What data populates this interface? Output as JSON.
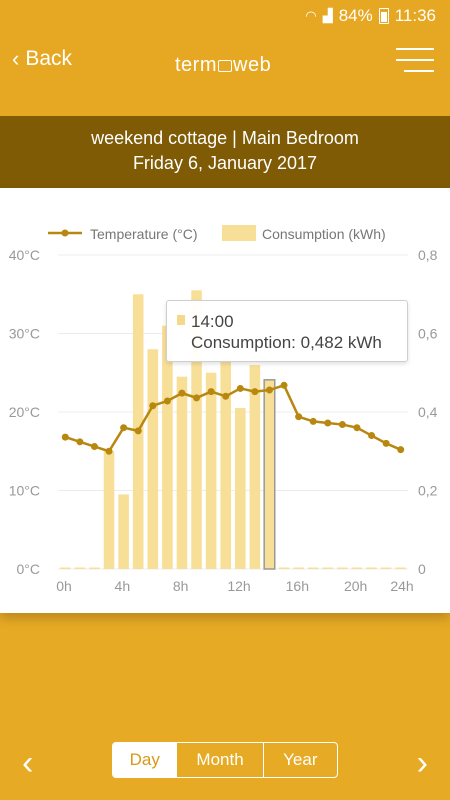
{
  "status": {
    "signal_text": "84%",
    "time": "11:36"
  },
  "header": {
    "back_label": "Back",
    "logo_left": "term",
    "logo_right": "web"
  },
  "subheader": {
    "line1": "weekend cottage | Main Bedroom",
    "line2": "Friday 6, January 2017"
  },
  "tooltip": {
    "time": "14:00",
    "value": "Consumption: 0,482 kWh"
  },
  "period_tabs": [
    {
      "label": "Day"
    },
    {
      "label": "Month"
    },
    {
      "label": "Year"
    }
  ],
  "colors": {
    "accent": "#e6a822",
    "dark": "#7f5b06",
    "line": "#b8870f",
    "bar": "#f8df98"
  },
  "chart_data": {
    "type": "bar",
    "legend": [
      "Temperature (°C)",
      "Consumption (kWh)"
    ],
    "x": [
      "0h",
      "1h",
      "2h",
      "3h",
      "4h",
      "5h",
      "6h",
      "7h",
      "8h",
      "9h",
      "10h",
      "11h",
      "12h",
      "13h",
      "14h",
      "15h",
      "16h",
      "17h",
      "18h",
      "19h",
      "20h",
      "21h",
      "22h",
      "23h"
    ],
    "x_tick_labels": [
      "0h",
      "4h",
      "8h",
      "12h",
      "16h",
      "20h",
      "24h"
    ],
    "y_left_ticks": [
      "0°C",
      "10°C",
      "20°C",
      "30°C",
      "40°C"
    ],
    "y_right_ticks": [
      "0",
      "0,2",
      "0,4",
      "0,6",
      "0,8"
    ],
    "ylim_left": [
      0,
      40
    ],
    "ylim_right": [
      0,
      0.8
    ],
    "highlight_index": 14,
    "series": [
      {
        "name": "Consumption (kWh)",
        "axis": "right",
        "type": "bar",
        "values": [
          0,
          0,
          0,
          0.3,
          0.19,
          0.7,
          0.56,
          0.62,
          0.49,
          0.71,
          0.5,
          0.54,
          0.41,
          0.52,
          0.482,
          0,
          0,
          0,
          0,
          0,
          0,
          0,
          0,
          0
        ]
      },
      {
        "name": "Temperature (°C)",
        "axis": "left",
        "type": "line",
        "values": [
          16.8,
          16.2,
          15.6,
          15.0,
          18.0,
          17.6,
          20.8,
          21.4,
          22.4,
          21.8,
          22.6,
          22.0,
          23.0,
          22.6,
          22.8,
          23.4,
          19.4,
          18.8,
          18.6,
          18.4,
          18.0,
          17.0,
          16.0,
          15.2
        ]
      }
    ],
    "grid": true
  }
}
